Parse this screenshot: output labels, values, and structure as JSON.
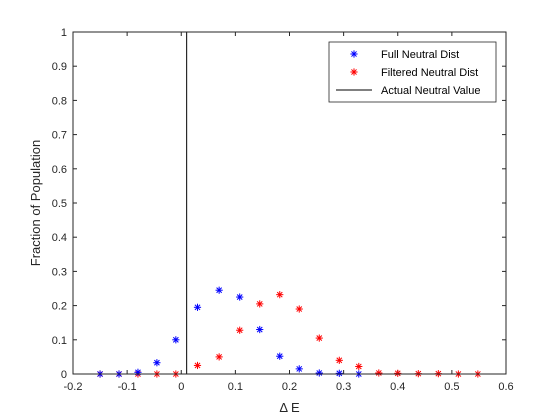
{
  "chart_data": {
    "type": "scatter",
    "title": "",
    "xlabel": "Δ E",
    "ylabel": "Fraction of Population",
    "xlim": [
      -0.2,
      0.6
    ],
    "ylim": [
      0,
      1
    ],
    "xticks": [
      -0.2,
      -0.1,
      0,
      0.1,
      0.2,
      0.3,
      0.4,
      0.5,
      0.6
    ],
    "xtick_labels": [
      "-0.2",
      "-0.1",
      "0",
      "0.1",
      "0.2",
      "0.3",
      "0.4",
      "0.5",
      "0.6"
    ],
    "yticks": [
      0,
      0.1,
      0.2,
      0.3,
      0.4,
      0.5,
      0.6,
      0.7,
      0.8,
      0.9,
      1
    ],
    "ytick_labels": [
      "0",
      "0.1",
      "0.2",
      "0.3",
      "0.4",
      "0.5",
      "0.6",
      "0.7",
      "0.8",
      "0.9",
      "1"
    ],
    "grid": false,
    "legend_position": "top-right",
    "series": [
      {
        "name": "Full Neutral Dist",
        "marker": "asterisk",
        "color": "#0000ff",
        "x": [
          -0.15,
          -0.115,
          -0.08,
          -0.045,
          -0.01,
          0.03,
          0.07,
          0.108,
          0.145,
          0.182,
          0.218,
          0.255,
          0.292,
          0.328
        ],
        "y": [
          0,
          0,
          0.005,
          0.033,
          0.1,
          0.195,
          0.245,
          0.225,
          0.13,
          0.052,
          0.015,
          0.003,
          0.002,
          0
        ]
      },
      {
        "name": "Filtered Neutral Dist",
        "marker": "asterisk",
        "color": "#ff0000",
        "x": [
          -0.15,
          -0.115,
          -0.08,
          -0.045,
          -0.01,
          0.03,
          0.07,
          0.108,
          0.145,
          0.182,
          0.218,
          0.255,
          0.292,
          0.328,
          0.365,
          0.4,
          0.438,
          0.475,
          0.512,
          0.548
        ],
        "y": [
          0,
          0,
          0,
          0,
          0,
          0.025,
          0.05,
          0.128,
          0.205,
          0.232,
          0.19,
          0.105,
          0.04,
          0.022,
          0.003,
          0.002,
          0.001,
          0.001,
          0,
          0
        ]
      }
    ],
    "reference_lines": [
      {
        "name": "Actual Neutral Value",
        "orientation": "vertical",
        "x": 0.01,
        "color": "#000000"
      }
    ]
  }
}
